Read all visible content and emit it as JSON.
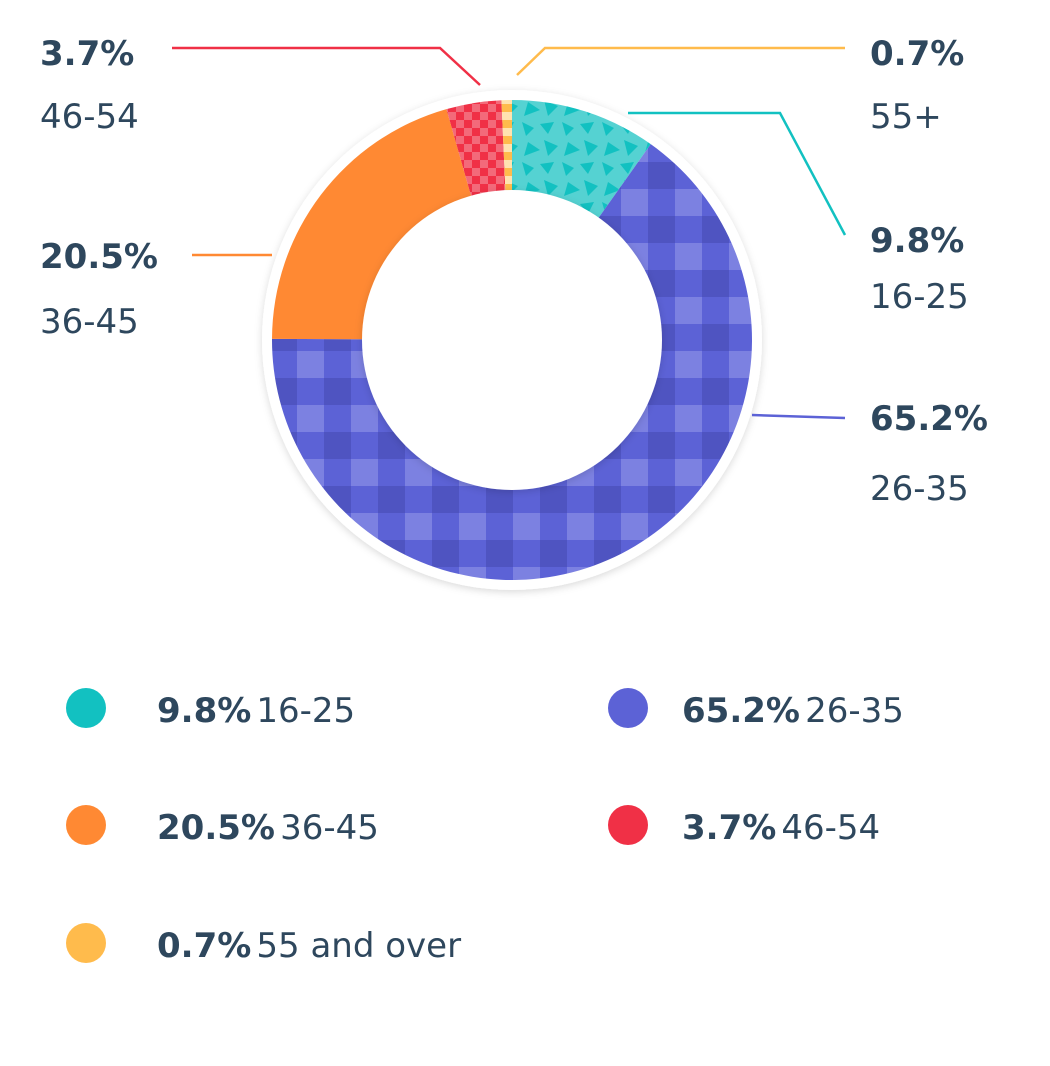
{
  "chart_data": {
    "type": "pie",
    "variant": "donut",
    "start": "top",
    "direction": "clockwise",
    "slices": [
      {
        "label": "16-25",
        "callout_label": "16-25",
        "legend_label": "16-25",
        "value": 9.8,
        "pct_text": "9.8%",
        "color": "#12C1C1",
        "fill": "#55D2D2"
      },
      {
        "label": "26-35",
        "callout_label": "26-35",
        "legend_label": "26-35",
        "value": 65.2,
        "pct_text": "65.2%",
        "color": "#5C62D6",
        "fill": "#5C62D6"
      },
      {
        "label": "36-45",
        "callout_label": "36-45",
        "legend_label": "36-45",
        "value": 20.5,
        "pct_text": "20.5%",
        "color": "#FF8933",
        "fill": "#FF8933"
      },
      {
        "label": "46-54",
        "callout_label": "46-54",
        "legend_label": "46-54",
        "value": 3.7,
        "pct_text": "3.7%",
        "color": "#F03046",
        "fill": "#F05A6C"
      },
      {
        "label": "55+",
        "callout_label": "55+",
        "legend_label": "55 and over",
        "value": 0.7,
        "pct_text": "0.7%",
        "color": "#FFBB4C",
        "fill": "#FFD28A"
      }
    ],
    "legend_placement": "bottom"
  }
}
